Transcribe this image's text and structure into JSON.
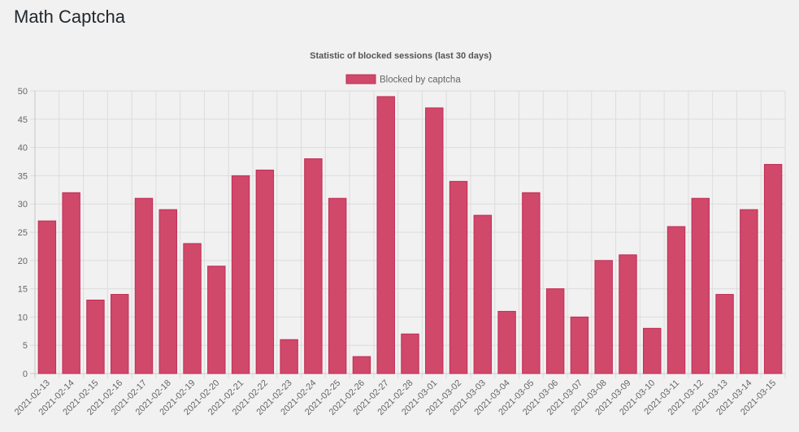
{
  "page": {
    "title": "Math Captcha"
  },
  "colors": {
    "bar_fill": "#d0486a",
    "bar_stroke": "#c22d55",
    "grid": "#dcdcdc",
    "axis": "#c8c8c8",
    "background": "#f1f1f1"
  },
  "chart_data": {
    "type": "bar",
    "title": "Statistic of blocked sessions (last 30 days)",
    "xlabel": "",
    "ylabel": "",
    "ylim": [
      0,
      50
    ],
    "yticks": [
      0,
      5,
      10,
      15,
      20,
      25,
      30,
      35,
      40,
      45,
      50
    ],
    "grid": true,
    "legend_position": "top-center",
    "categories": [
      "2021-02-13",
      "2021-02-14",
      "2021-02-15",
      "2021-02-16",
      "2021-02-17",
      "2021-02-18",
      "2021-02-19",
      "2021-02-20",
      "2021-02-21",
      "2021-02-22",
      "2021-02-23",
      "2021-02-24",
      "2021-02-25",
      "2021-02-26",
      "2021-02-27",
      "2021-02-28",
      "2021-03-01",
      "2021-03-02",
      "2021-03-03",
      "2021-03-04",
      "2021-03-05",
      "2021-03-06",
      "2021-03-07",
      "2021-03-08",
      "2021-03-09",
      "2021-03-10",
      "2021-03-11",
      "2021-03-12",
      "2021-03-13",
      "2021-03-14",
      "2021-03-15"
    ],
    "series": [
      {
        "name": "Blocked by captcha",
        "values": [
          27,
          32,
          13,
          14,
          31,
          29,
          23,
          19,
          35,
          36,
          6,
          38,
          31,
          3,
          49,
          7,
          47,
          34,
          28,
          11,
          32,
          15,
          10,
          20,
          21,
          8,
          26,
          31,
          14,
          29,
          37
        ]
      }
    ]
  }
}
